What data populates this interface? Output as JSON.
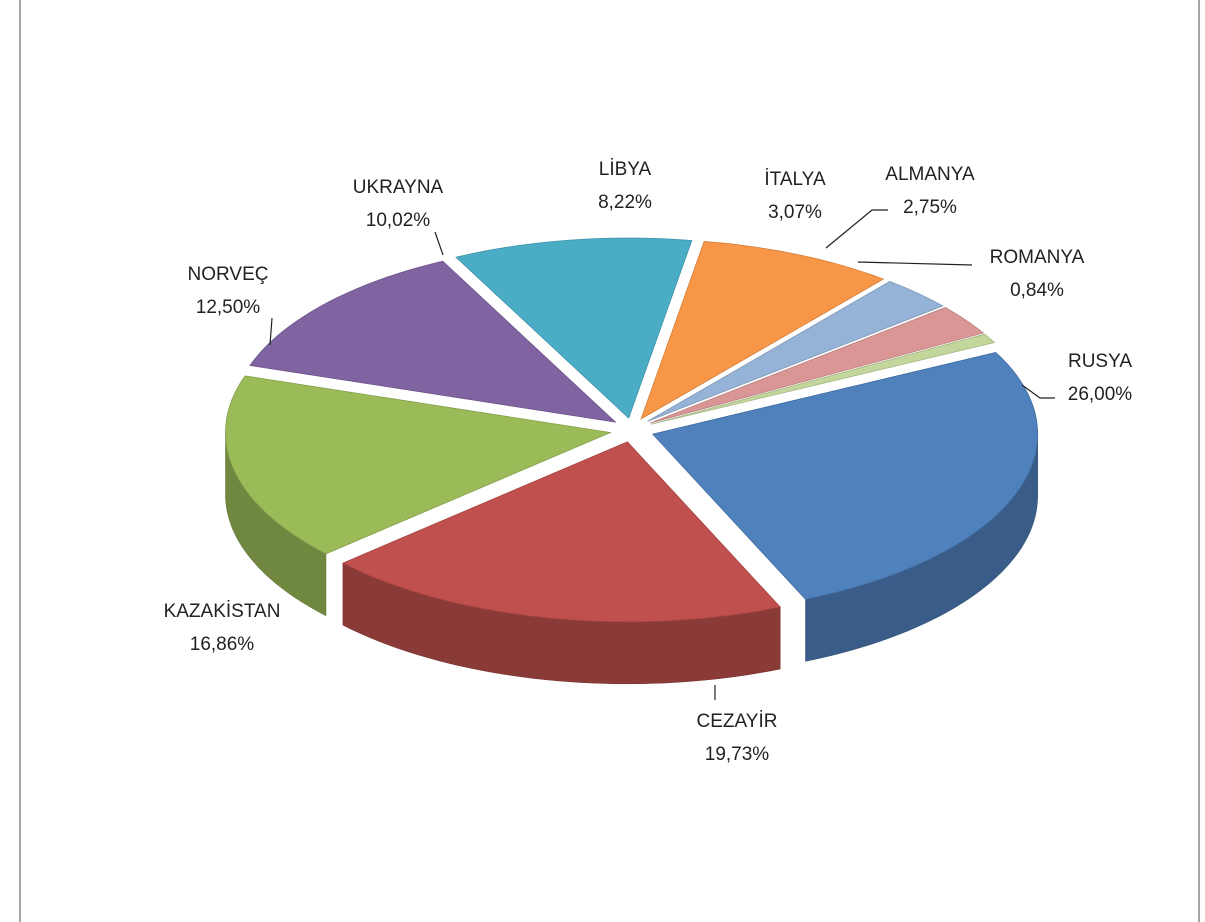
{
  "chart_data": {
    "type": "pie",
    "categories": [
      "RUSYA",
      "CEZAYİR",
      "KAZAKİSTAN",
      "NORVEÇ",
      "UKRAYNA",
      "LİBYA",
      "İTALYA",
      "ALMANYA",
      "ROMANYA"
    ],
    "values": [
      26.0,
      19.73,
      16.86,
      12.5,
      10.02,
      8.22,
      3.07,
      2.75,
      0.84
    ],
    "value_labels": [
      "26,00%",
      "19,73%",
      "16,86%",
      "12,50%",
      "10,02%",
      "8,22%",
      "3,07%",
      "2,75%",
      "0,84%"
    ],
    "colors": [
      "#4f81bd",
      "#c0504d",
      "#9bbb59",
      "#8064a2",
      "#4bacc6",
      "#f79646",
      "#95b3d7",
      "#d99694",
      "#c3d69b"
    ]
  }
}
